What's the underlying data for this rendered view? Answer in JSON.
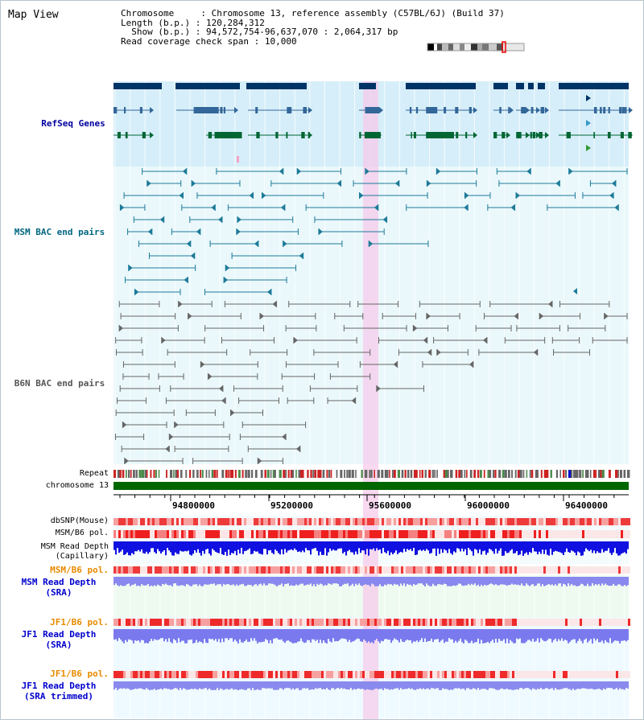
{
  "app": {
    "title": "Map View"
  },
  "info": {
    "chromosome_key": "Chromosome",
    "chromosome_val": "Chromosome 13, reference assembly (C57BL/6J) (Build 37)",
    "length_key": "Length (b.p.)",
    "length_val": "120,284,312",
    "show_key": "  Show (b.p.)",
    "show_val": "94,572,754-96,637,070 : 2,064,317 bp",
    "span_key": "Read coverage check span",
    "span_val": "10,000"
  },
  "tracks": {
    "refseq": {
      "label": "RefSeq Genes",
      "color": "#0000a0"
    },
    "msm_bac": {
      "label": "MSM BAC end pairs",
      "color": "#006680"
    },
    "b6n_bac": {
      "label": "B6N BAC end pairs",
      "color": "#555555"
    },
    "repeat": {
      "label": "Repeat"
    },
    "chromosome": {
      "label": "chromosome 13"
    },
    "axis_ticks": [
      "94800000",
      "95200000",
      "95600000",
      "96000000",
      "96400000"
    ],
    "dbsnp": {
      "label": "dbSNP(Mouse)"
    },
    "msm_pol": {
      "label": "MSM/B6 pol."
    },
    "msm_depth_cap": {
      "label1": "MSM Read Depth",
      "label2": "(Capillary)"
    },
    "msm_pol_sra": {
      "label": "MSM/B6 pol.",
      "color": "#e88a00"
    },
    "msm_depth_sra": {
      "label1": "MSM Read Depth",
      "label2": "(SRA)",
      "color": "#0000cc"
    },
    "jf1_pol": {
      "label": "JF1/B6 pol.",
      "color": "#e88a00"
    },
    "jf1_depth": {
      "label1": "JF1 Read Depth",
      "label2": "(SRA)",
      "color": "#0000cc"
    },
    "jf1_pol2": {
      "label": "JF1/B6 pol.",
      "color": "#e88a00"
    },
    "jf1_depth_trim": {
      "label1": "JF1 Read Depth",
      "label2": "(SRA trimmed)",
      "color": "#0000cc"
    }
  }
}
